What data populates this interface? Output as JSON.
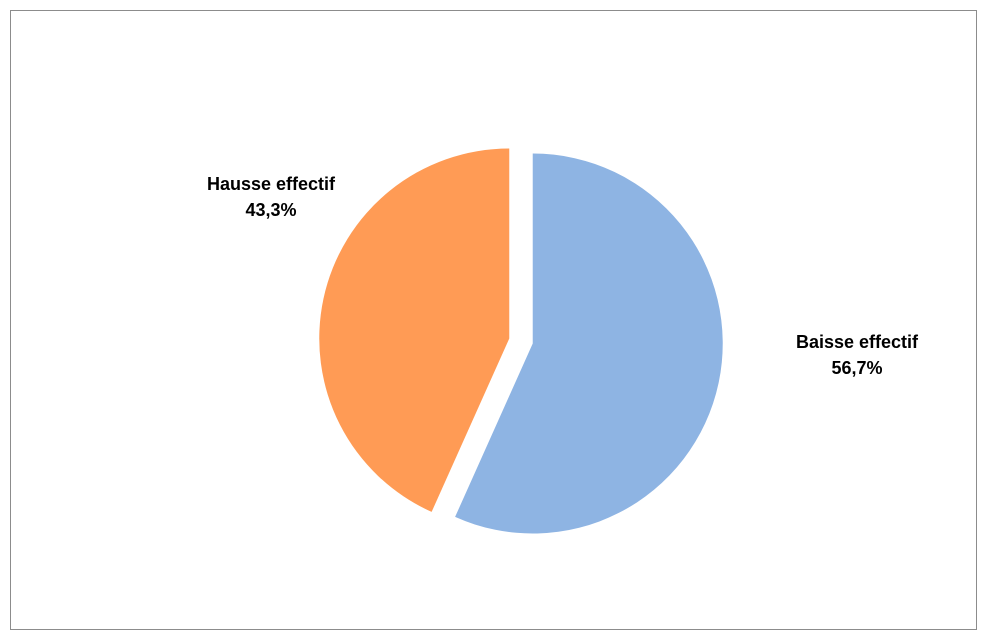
{
  "chart_data": {
    "type": "pie",
    "title": "",
    "series": [
      {
        "values": [
          {
            "label": "Baisse effectif",
            "value": 56.7,
            "display": "56,7%",
            "color": "#8EB4E3"
          },
          {
            "label": "Hausse effectif",
            "value": 43.3,
            "display": "43,3%",
            "color": "#FF9B55"
          }
        ]
      }
    ],
    "start_angle_deg": 0,
    "direction": "clockwise",
    "exploded": true,
    "legend": "none",
    "data_labels": "outside"
  }
}
